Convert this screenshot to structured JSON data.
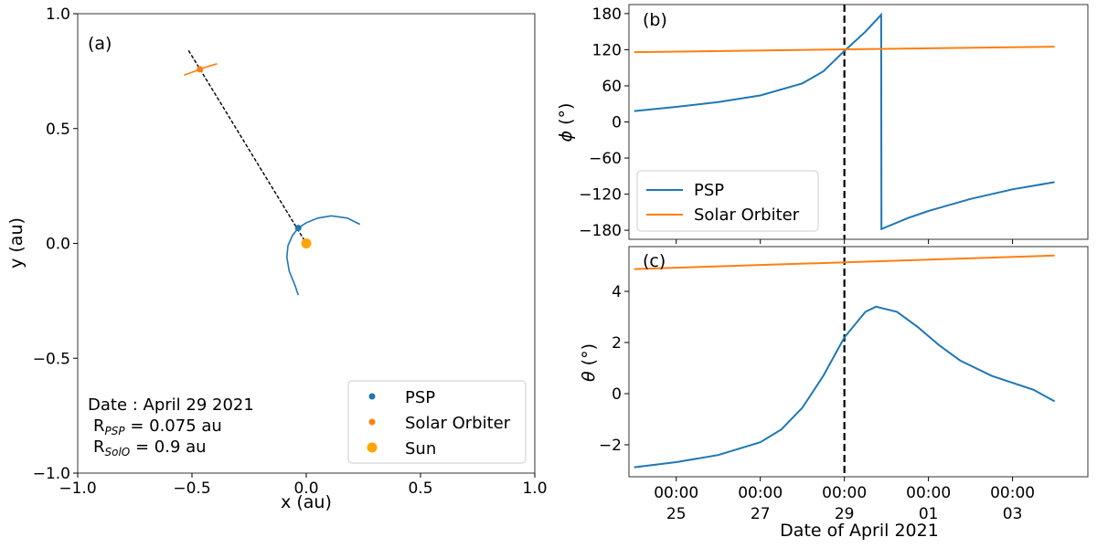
{
  "colors": {
    "psp": "#1f77b4",
    "solo": "#ff7f0e",
    "sun": "#ffa500",
    "frame": "#000000"
  },
  "chart_data": [
    {
      "id": "a",
      "type": "scatter",
      "panel_label": "(a)",
      "xlabel": "x (au)",
      "ylabel": "y (au)",
      "xlim": [
        -1.0,
        1.0
      ],
      "ylim": [
        -1.0,
        1.0
      ],
      "xticks": [
        {
          "value": -1.0,
          "label": "−1.0"
        },
        {
          "value": -0.5,
          "label": "−0.5"
        },
        {
          "value": 0.0,
          "label": "0.0"
        },
        {
          "value": 0.5,
          "label": "0.5"
        },
        {
          "value": 1.0,
          "label": "1.0"
        }
      ],
      "yticks": [
        {
          "value": -1.0,
          "label": "−1.0"
        },
        {
          "value": -0.5,
          "label": "−0.5"
        },
        {
          "value": 0.0,
          "label": "0.0"
        },
        {
          "value": 0.5,
          "label": "0.5"
        },
        {
          "value": 1.0,
          "label": "1.0"
        }
      ],
      "grid": false,
      "legend_position": "lower right",
      "legend": [
        "PSP",
        "Solar Orbiter",
        "Sun"
      ],
      "points": [
        {
          "name": "PSP",
          "x": -0.035,
          "y": 0.067
        },
        {
          "name": "Solar Orbiter",
          "x": -0.465,
          "y": 0.758
        },
        {
          "name": "Sun",
          "x": 0.0,
          "y": 0.0
        }
      ],
      "psp_orbit": [
        [
          0.235,
          0.083
        ],
        [
          0.18,
          0.11
        ],
        [
          0.11,
          0.12
        ],
        [
          0.05,
          0.11
        ],
        [
          0.0,
          0.09
        ],
        [
          -0.035,
          0.067
        ],
        [
          -0.06,
          0.035
        ],
        [
          -0.08,
          -0.01
        ],
        [
          -0.085,
          -0.06
        ],
        [
          -0.075,
          -0.12
        ],
        [
          -0.05,
          -0.18
        ],
        [
          -0.035,
          -0.225
        ]
      ],
      "solo_orbit": [
        [
          -0.535,
          0.733
        ],
        [
          -0.5,
          0.745
        ],
        [
          -0.465,
          0.758
        ],
        [
          -0.43,
          0.77
        ],
        [
          -0.39,
          0.782
        ]
      ],
      "line_of_sight": [
        [
          -0.515,
          0.84
        ],
        [
          0.0,
          0.0
        ]
      ],
      "annotation": {
        "date": "Date : April 29 2021",
        "r_psp_label": "R",
        "r_psp_sub": "PSP",
        "r_psp_value": " = 0.075 au",
        "r_solo_label": "R",
        "r_solo_sub": "SolO",
        "r_solo_value": " = 0.9 au"
      }
    },
    {
      "id": "b",
      "type": "line",
      "panel_label": "(b)",
      "ylabel_symbol": "ϕ",
      "ylabel_unit": " (°)",
      "xlim": [
        "2021-04-23T21:00",
        "2021-05-04T19:00"
      ],
      "ylim": [
        -195,
        195
      ],
      "yticks": [
        {
          "value": 180,
          "label": "180"
        },
        {
          "value": 120,
          "label": "120"
        },
        {
          "value": 60,
          "label": "60"
        },
        {
          "value": 0,
          "label": "0"
        },
        {
          "value": -60,
          "label": "−60"
        },
        {
          "value": -120,
          "label": "−120"
        },
        {
          "value": -180,
          "label": "−180"
        }
      ],
      "grid": false,
      "legend_position": "lower left",
      "vline": "2021-04-29T00:00",
      "series": [
        {
          "name": "PSP",
          "points": [
            [
              "2021-04-24T00:00",
              18
            ],
            [
              "2021-04-25T00:00",
              25
            ],
            [
              "2021-04-26T00:00",
              33
            ],
            [
              "2021-04-27T00:00",
              44
            ],
            [
              "2021-04-28T00:00",
              64
            ],
            [
              "2021-04-28T12:00",
              84
            ],
            [
              "2021-04-29T00:00",
              118
            ],
            [
              "2021-04-29T12:00",
              150
            ],
            [
              "2021-04-29T21:00",
              178
            ],
            [
              "2021-04-29T21:10",
              -178
            ],
            [
              "2021-04-30T12:00",
              -160
            ],
            [
              "2021-05-01T00:00",
              -148
            ],
            [
              "2021-05-02T00:00",
              -128
            ],
            [
              "2021-05-03T00:00",
              -112
            ],
            [
              "2021-05-04T00:00",
              -100
            ]
          ]
        },
        {
          "name": "Solar Orbiter",
          "points": [
            [
              "2021-04-24T00:00",
              116
            ],
            [
              "2021-05-04T00:00",
              125
            ]
          ]
        }
      ]
    },
    {
      "id": "c",
      "type": "line",
      "panel_label": "(c)",
      "ylabel_symbol": "θ",
      "ylabel_unit": " (°)",
      "xlabel": "Date of April 2021",
      "xlim": [
        "2021-04-23T21:00",
        "2021-05-04T19:00"
      ],
      "ylim": [
        -3.25,
        5.75
      ],
      "yticks": [
        {
          "value": 4,
          "label": "4"
        },
        {
          "value": 2,
          "label": "2"
        },
        {
          "value": 0,
          "label": "0"
        },
        {
          "value": -2,
          "label": "−2"
        }
      ],
      "xticks": [
        {
          "value": "2021-04-25T00:00",
          "time": "00:00",
          "day": "25"
        },
        {
          "value": "2021-04-27T00:00",
          "time": "00:00",
          "day": "27"
        },
        {
          "value": "2021-04-29T00:00",
          "time": "00:00",
          "day": "29"
        },
        {
          "value": "2021-05-01T00:00",
          "time": "00:00",
          "day": "01"
        },
        {
          "value": "2021-05-03T00:00",
          "time": "00:00",
          "day": "03"
        }
      ],
      "grid": false,
      "vline": "2021-04-29T00:00",
      "series": [
        {
          "name": "PSP",
          "points": [
            [
              "2021-04-24T00:00",
              -2.88
            ],
            [
              "2021-04-25T00:00",
              -2.68
            ],
            [
              "2021-04-26T00:00",
              -2.4
            ],
            [
              "2021-04-27T00:00",
              -1.9
            ],
            [
              "2021-04-27T12:00",
              -1.4
            ],
            [
              "2021-04-28T00:00",
              -0.55
            ],
            [
              "2021-04-28T12:00",
              0.7
            ],
            [
              "2021-04-29T00:00",
              2.2
            ],
            [
              "2021-04-29T12:00",
              3.2
            ],
            [
              "2021-04-29T18:00",
              3.4
            ],
            [
              "2021-04-30T06:00",
              3.2
            ],
            [
              "2021-04-30T18:00",
              2.6
            ],
            [
              "2021-05-01T06:00",
              1.9
            ],
            [
              "2021-05-01T18:00",
              1.3
            ],
            [
              "2021-05-02T12:00",
              0.7
            ],
            [
              "2021-05-03T12:00",
              0.15
            ],
            [
              "2021-05-04T00:00",
              -0.3
            ]
          ]
        },
        {
          "name": "Solar Orbiter",
          "points": [
            [
              "2021-04-24T00:00",
              4.87
            ],
            [
              "2021-05-04T00:00",
              5.4
            ]
          ]
        }
      ]
    }
  ]
}
